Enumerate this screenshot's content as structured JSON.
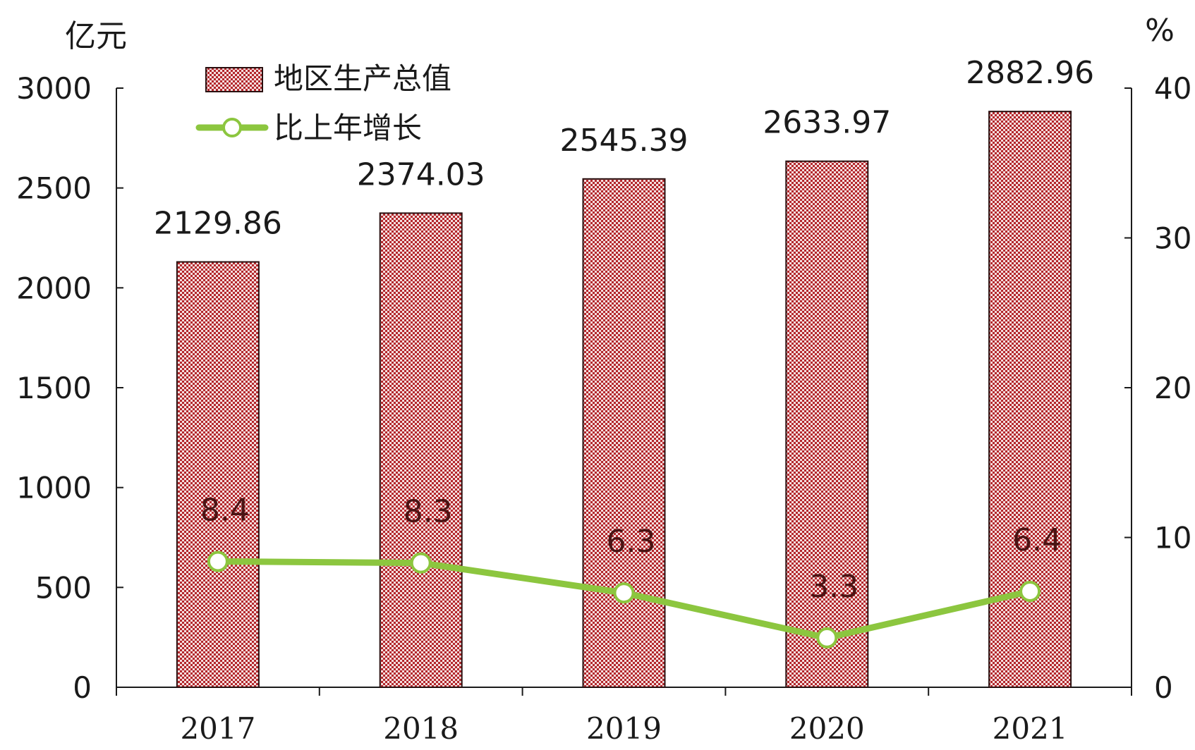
{
  "chart_data": {
    "type": "bar",
    "categories": [
      "2017",
      "2018",
      "2019",
      "2020",
      "2021"
    ],
    "series": [
      {
        "name": "地区生产总值",
        "type": "bar",
        "axis": "left",
        "values": [
          2129.86,
          2374.03,
          2545.39,
          2633.97,
          2882.96
        ],
        "labels": [
          "2129.86",
          "2374.03",
          "2545.39",
          "2633.97",
          "2882.96"
        ]
      },
      {
        "name": "比上年增长",
        "type": "line",
        "axis": "right",
        "values": [
          8.4,
          8.3,
          6.3,
          3.3,
          6.4
        ],
        "labels": [
          "8.4",
          "8.3",
          "6.3",
          "3.3",
          "6.4"
        ]
      }
    ],
    "y_left": {
      "unit": "亿元",
      "ylim": [
        0,
        3000
      ],
      "ticks": [
        "0",
        "500",
        "1000",
        "1500",
        "2000",
        "2500",
        "3000"
      ]
    },
    "y_right": {
      "unit": "%",
      "ylim": [
        0,
        40
      ],
      "ticks": [
        "0",
        "10",
        "20",
        "30",
        "40"
      ]
    },
    "legend_position": "top-left",
    "grid": false,
    "colors": {
      "bar_fill": "#c0504d",
      "bar_hatch": "#f4dede",
      "bar_edge": "#2a1010",
      "line": "#8cc63f",
      "marker_fill": "#ffffff"
    }
  }
}
